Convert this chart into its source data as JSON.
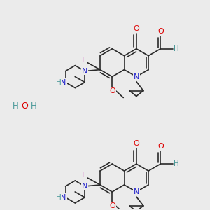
{
  "bg_color": "#ebebeb",
  "bond_color": "#2a2a2a",
  "bond_width": 1.2,
  "colors": {
    "N": "#2222cc",
    "O": "#dd0000",
    "F": "#cc44bb",
    "H": "#4a9999",
    "C": "#2a2a2a"
  },
  "figsize": [
    3.0,
    3.0
  ],
  "dpi": 100
}
